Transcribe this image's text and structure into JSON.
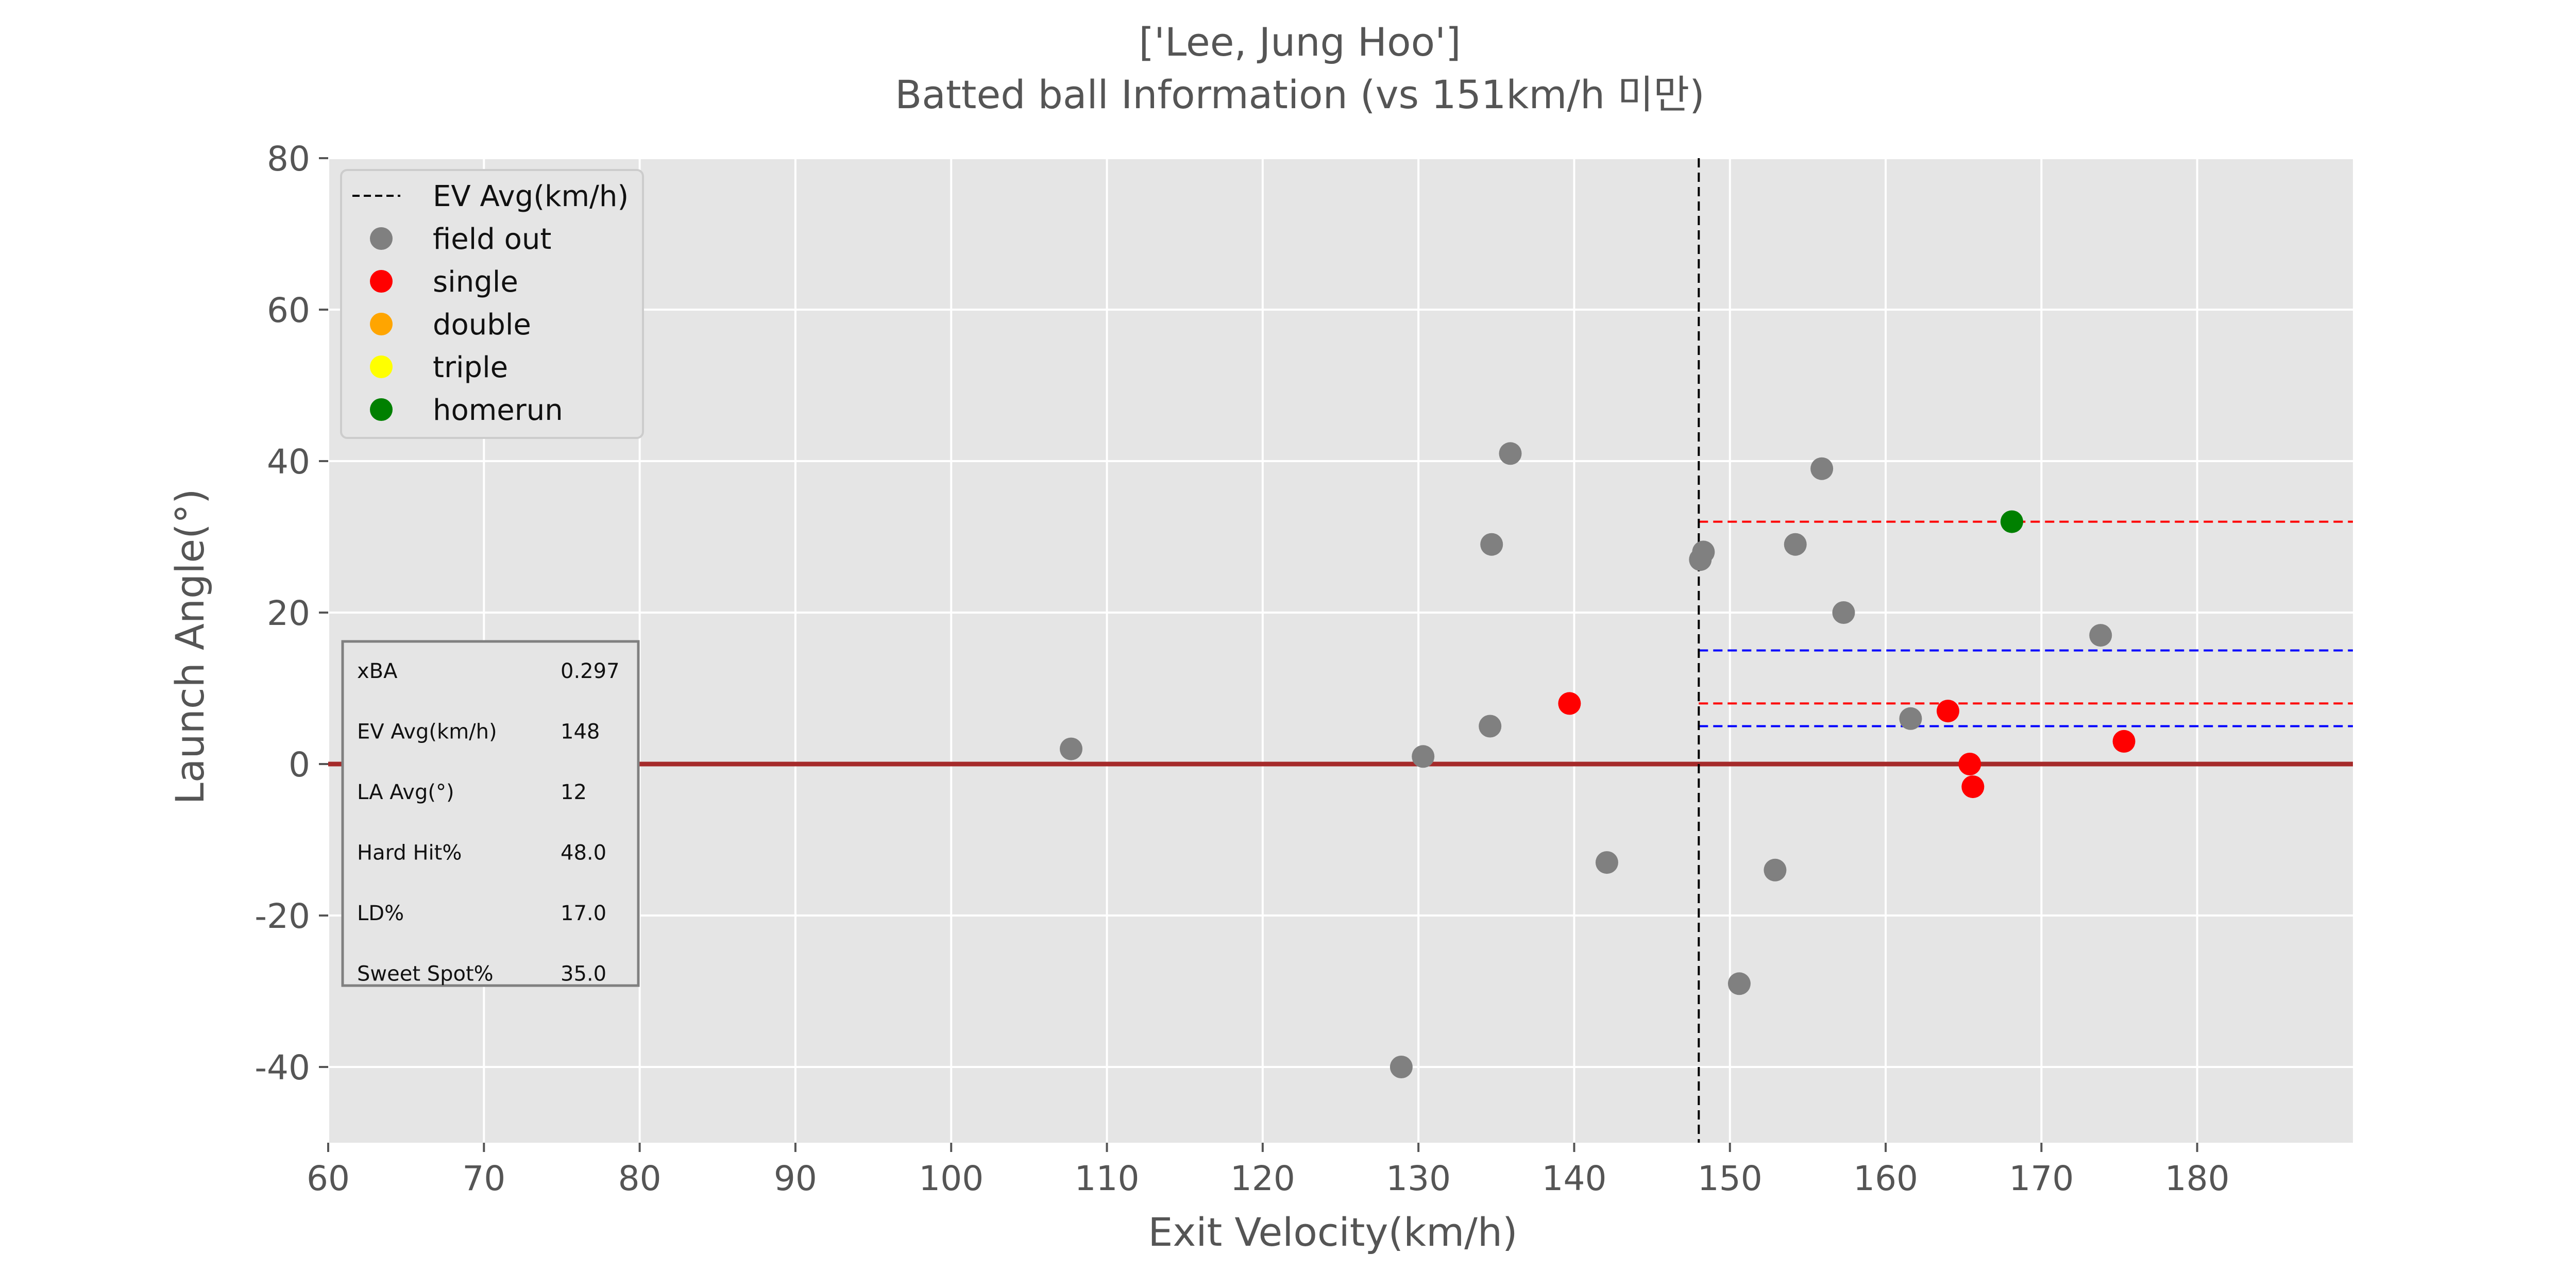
{
  "chart_data": {
    "type": "scatter",
    "title_line1": "['Lee, Jung Hoo']",
    "title_line2": "Batted ball Information (vs 151km/h 미만)",
    "xlabel": "Exit Velocity(km/h)",
    "ylabel": "Launch Angle(°)",
    "xlim": [
      60,
      190
    ],
    "ylim": [
      -50,
      80
    ],
    "xticks": [
      60,
      70,
      80,
      90,
      100,
      110,
      120,
      130,
      140,
      150,
      160,
      170,
      180
    ],
    "yticks": [
      -40,
      -20,
      0,
      20,
      40,
      60,
      80
    ],
    "grid": true,
    "legend_position": "top-left",
    "colors": {
      "background": "#e5e5e5",
      "grid": "#ffffff",
      "field_out": "#808080",
      "single": "#ff0000",
      "double": "#ffa500",
      "triple": "#ffff00",
      "homerun": "#008000",
      "zero_line": "#a52a2a",
      "ev_avg_line": "#000000",
      "red_dash": "#ff0000",
      "blue_dash": "#0000ff"
    },
    "legend": [
      {
        "key": "ev_avg",
        "label": "EV Avg(km/h)",
        "kind": "line"
      },
      {
        "key": "field_out",
        "label": "field out",
        "kind": "dot"
      },
      {
        "key": "single",
        "label": "single",
        "kind": "dot"
      },
      {
        "key": "double",
        "label": "double",
        "kind": "dot"
      },
      {
        "key": "triple",
        "label": "triple",
        "kind": "dot"
      },
      {
        "key": "homerun",
        "label": "homerun",
        "kind": "dot"
      }
    ],
    "series": [
      {
        "name": "field out",
        "key": "field_out",
        "points": [
          [
            107.7,
            2
          ],
          [
            128.9,
            -40
          ],
          [
            130.3,
            1
          ],
          [
            134.6,
            5
          ],
          [
            134.7,
            29
          ],
          [
            135.9,
            41
          ],
          [
            142.1,
            -13
          ],
          [
            148.1,
            27
          ],
          [
            148.3,
            28
          ],
          [
            150.6,
            -29
          ],
          [
            152.9,
            -14
          ],
          [
            154.2,
            29
          ],
          [
            155.9,
            39
          ],
          [
            157.3,
            20
          ],
          [
            161.6,
            6
          ],
          [
            173.8,
            17
          ]
        ]
      },
      {
        "name": "single",
        "key": "single",
        "points": [
          [
            139.7,
            8
          ],
          [
            164.0,
            7
          ],
          [
            165.4,
            0
          ],
          [
            165.6,
            -3
          ],
          [
            175.3,
            3
          ]
        ]
      },
      {
        "name": "double",
        "key": "double",
        "points": []
      },
      {
        "name": "triple",
        "key": "triple",
        "points": []
      },
      {
        "name": "homerun",
        "key": "homerun",
        "points": [
          [
            168.1,
            32
          ]
        ]
      }
    ],
    "reference_lines": {
      "ev_avg_x": 148,
      "zero_y": 0,
      "red_dashed_y": [
        32,
        8
      ],
      "blue_dashed_y": [
        15,
        5
      ]
    },
    "stats_table": [
      {
        "label": "xBA",
        "value": "0.297"
      },
      {
        "label": "EV Avg(km/h)",
        "value": "148"
      },
      {
        "label": "LA Avg(°)",
        "value": "12"
      },
      {
        "label": "Hard Hit%",
        "value": "48.0"
      },
      {
        "label": "LD%",
        "value": "17.0"
      },
      {
        "label": "Sweet Spot%",
        "value": "35.0"
      }
    ]
  }
}
